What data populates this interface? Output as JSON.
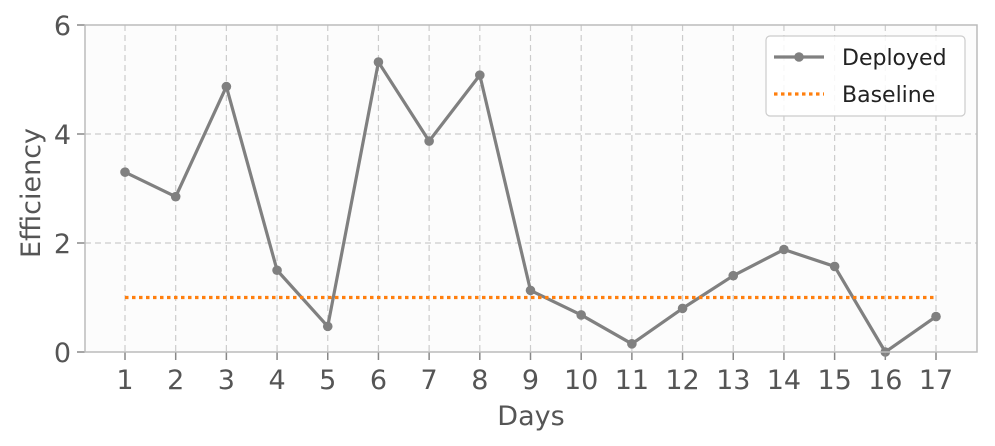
{
  "chart_data": {
    "type": "line",
    "x": [
      1,
      2,
      3,
      4,
      5,
      6,
      7,
      8,
      9,
      10,
      11,
      12,
      13,
      14,
      15,
      16,
      17
    ],
    "xlabel": "Days",
    "ylabel": "Efficiency",
    "xticks": [
      "1",
      "2",
      "3",
      "4",
      "5",
      "6",
      "7",
      "8",
      "9",
      "10",
      "11",
      "12",
      "13",
      "14",
      "15",
      "16",
      "17"
    ],
    "yticks": [
      "0",
      "2",
      "4",
      "6"
    ],
    "ylim": [
      0,
      6
    ],
    "grid": true,
    "legend_position": "top-right",
    "series": [
      {
        "name": "Deployed",
        "style": "solid-with-markers",
        "color": "#808080",
        "values": [
          3.3,
          2.85,
          4.87,
          1.5,
          0.47,
          5.32,
          3.87,
          5.08,
          1.13,
          0.68,
          0.15,
          0.8,
          1.4,
          1.88,
          1.57,
          0.0,
          0.65
        ]
      },
      {
        "name": "Baseline",
        "style": "dotted",
        "color": "#ff7f0e",
        "values": [
          1,
          1,
          1,
          1,
          1,
          1,
          1,
          1,
          1,
          1,
          1,
          1,
          1,
          1,
          1,
          1,
          1
        ]
      }
    ]
  }
}
